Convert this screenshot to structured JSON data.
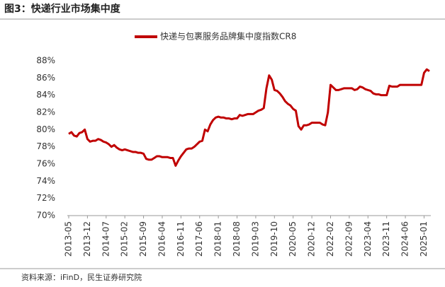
{
  "chart_data": {
    "type": "line",
    "title": "图3：快递行业市场集中度",
    "source": "资料来源：iFinD，民生证券研究院",
    "categories": [
      "2013-05",
      null,
      null,
      null,
      null,
      null,
      null,
      "2013-12",
      null,
      null,
      null,
      null,
      null,
      null,
      "2014-07",
      null,
      null,
      null,
      null,
      null,
      null,
      "2015-02",
      null,
      null,
      null,
      null,
      null,
      null,
      "2015-09",
      null,
      null,
      null,
      null,
      null,
      null,
      "2016-04",
      null,
      null,
      null,
      null,
      null,
      null,
      "2016-11",
      null,
      null,
      null,
      null,
      null,
      null,
      "2017-06",
      null,
      null,
      null,
      null,
      null,
      null,
      "2018-01",
      null,
      null,
      null,
      null,
      null,
      null,
      "2018-08",
      null,
      null,
      null,
      null,
      null,
      null,
      "2019-03",
      null,
      null,
      null,
      null,
      null,
      null,
      "2019-10",
      null,
      null,
      null,
      null,
      null,
      null,
      "2020-05",
      null,
      null,
      null,
      null,
      null,
      null,
      "2020-12",
      null,
      null,
      null,
      null,
      null,
      null,
      "2022-02",
      null,
      null,
      null,
      null,
      null,
      null,
      "2022-09",
      null,
      null,
      null,
      null,
      null,
      null,
      "2023-04",
      null,
      null,
      null,
      null,
      null,
      null,
      "2023-11",
      null,
      null,
      null,
      null,
      null,
      null,
      "2024-06",
      null,
      null,
      null,
      null,
      null,
      null,
      "2025-01",
      null,
      null
    ],
    "series": [
      {
        "name": "快递与包裹服务品牌集中度指数CR8",
        "color": "#c00000",
        "values": [
          79.5,
          79.7,
          79.3,
          79.2,
          79.6,
          79.7,
          80.0,
          78.9,
          78.6,
          78.7,
          78.7,
          78.9,
          78.8,
          78.6,
          78.5,
          78.3,
          78.0,
          78.2,
          77.9,
          77.7,
          77.6,
          77.7,
          77.6,
          77.5,
          77.4,
          77.4,
          77.3,
          77.3,
          77.2,
          76.6,
          76.5,
          76.5,
          76.7,
          76.9,
          76.9,
          76.8,
          76.8,
          76.8,
          76.7,
          76.7,
          75.8,
          76.4,
          76.9,
          77.3,
          77.7,
          77.8,
          77.8,
          78.0,
          78.3,
          78.6,
          78.7,
          80.0,
          79.8,
          80.6,
          81.1,
          81.4,
          81.5,
          81.4,
          81.4,
          81.3,
          81.3,
          81.2,
          81.3,
          81.3,
          81.7,
          81.6,
          81.7,
          81.8,
          81.8,
          81.8,
          82.0,
          82.2,
          82.3,
          82.5,
          84.8,
          86.3,
          85.8,
          84.6,
          84.5,
          84.2,
          83.8,
          83.3,
          83.0,
          82.8,
          82.4,
          82.2,
          80.4,
          80.0,
          80.5,
          80.5,
          80.6,
          80.8,
          80.8,
          80.8,
          80.8,
          80.6,
          80.5,
          82.0,
          85.2,
          84.9,
          84.6,
          84.6,
          84.7,
          84.8,
          84.8,
          84.8,
          84.8,
          84.6,
          84.7,
          85.0,
          84.9,
          84.7,
          84.6,
          84.5,
          84.2,
          84.1,
          84.1,
          84.0,
          84.0,
          84.0,
          85.1,
          85.0,
          85.0,
          85.0,
          85.2,
          85.2,
          85.2,
          85.2,
          85.2,
          85.2,
          85.2,
          85.2,
          85.2,
          86.6,
          87.0,
          86.8
        ]
      }
    ],
    "ylim": [
      70,
      88
    ],
    "yticks": [
      {
        "value": 70,
        "label": "70%"
      },
      {
        "value": 72,
        "label": "72%"
      },
      {
        "value": 74,
        "label": "74%"
      },
      {
        "value": 76,
        "label": "76%"
      },
      {
        "value": 78,
        "label": "78%"
      },
      {
        "value": 80,
        "label": "80%"
      },
      {
        "value": 82,
        "label": "82%"
      },
      {
        "value": 84,
        "label": "84%"
      },
      {
        "value": 86,
        "label": "86%"
      },
      {
        "value": 88,
        "label": "88%"
      }
    ],
    "grid": false,
    "legend": "top"
  }
}
